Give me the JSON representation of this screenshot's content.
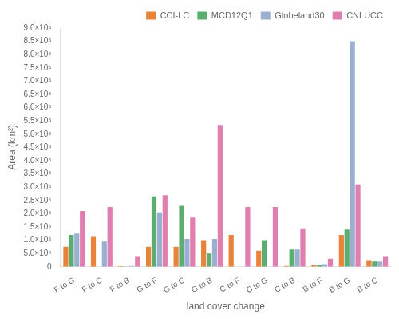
{
  "chart_data": {
    "type": "bar",
    "xlabel": "land cover change",
    "ylabel": "Area (km²)",
    "categories": [
      "F to G",
      "F to C",
      "F to B",
      "G to F",
      "G to C",
      "G to B",
      "C to F",
      "C to G",
      "C to B",
      "B to F",
      "B to G",
      "B to C"
    ],
    "series": [
      {
        "name": "CCI-LC",
        "color": "#E8833A",
        "values": [
          75000,
          115000,
          2000,
          75000,
          75000,
          100000,
          120000,
          60000,
          3000,
          5000,
          120000,
          25000
        ]
      },
      {
        "name": "MCD12Q1",
        "color": "#5BAD72",
        "values": [
          120000,
          0,
          1000,
          265000,
          230000,
          50000,
          0,
          100000,
          65000,
          5000,
          140000,
          20000
        ]
      },
      {
        "name": "Globeland30",
        "color": "#9BAFD0",
        "values": [
          125000,
          95000,
          3000,
          205000,
          105000,
          105000,
          0,
          0,
          65000,
          10000,
          850000,
          20000
        ]
      },
      {
        "name": "CNLUCC",
        "color": "#E07EB0",
        "values": [
          210000,
          225000,
          40000,
          270000,
          185000,
          535000,
          225000,
          225000,
          145000,
          30000,
          310000,
          40000
        ]
      }
    ],
    "ylim": [
      0,
      900000
    ],
    "yticks": [
      0,
      {
        "value": 50000,
        "label": "5.0×10⁴"
      },
      {
        "value": 100000,
        "label": "1.0×10⁵"
      },
      {
        "value": 150000,
        "label": "1.5×10⁵"
      },
      {
        "value": 200000,
        "label": "2.0×10⁵"
      },
      {
        "value": 250000,
        "label": "2.5×10⁵"
      },
      {
        "value": 300000,
        "label": "3.0×10⁵"
      },
      {
        "value": 350000,
        "label": "3.5×10⁵"
      },
      {
        "value": 400000,
        "label": "4.0×10⁵"
      },
      {
        "value": 450000,
        "label": "4.5×10⁵"
      },
      {
        "value": 500000,
        "label": "5.0×10⁵"
      },
      {
        "value": 550000,
        "label": "5.5×10⁵"
      },
      {
        "value": 600000,
        "label": "6.0×10⁵"
      },
      {
        "value": 650000,
        "label": "6.5×10⁵"
      },
      {
        "value": 700000,
        "label": "7.0×10⁵"
      },
      {
        "value": 750000,
        "label": "7.5×10⁵"
      },
      {
        "value": 800000,
        "label": "8.0×10⁵"
      },
      {
        "value": 850000,
        "label": "8.5×10⁵"
      },
      {
        "value": 900000,
        "label": "9.0×10⁵"
      }
    ],
    "legend": "upper right",
    "grid": false
  }
}
